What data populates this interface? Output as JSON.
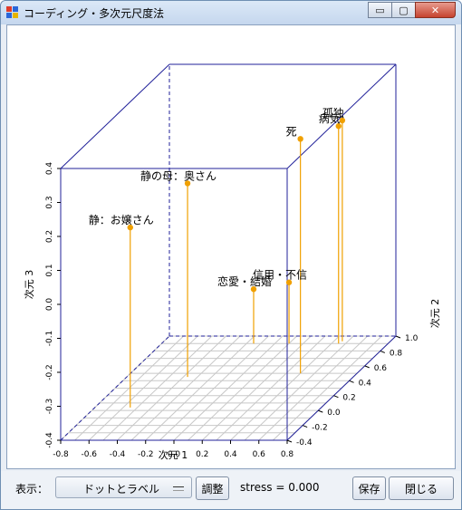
{
  "window": {
    "title": "コーディング・多次元尺度法",
    "buttons": {
      "minimize": "▭",
      "maximize": "▢",
      "close": "✕"
    }
  },
  "chart_data": {
    "type": "scatter",
    "projection": "3d",
    "axes": {
      "x": {
        "label": "次元 1",
        "range": [
          -0.8,
          0.8
        ],
        "ticks": [
          "-0.8",
          "-0.6",
          "-0.4",
          "-0.2",
          "0.0",
          "0.2",
          "0.4",
          "0.6",
          "0.8"
        ]
      },
      "y": {
        "label": "次元 2",
        "range": [
          -0.4,
          1.0
        ],
        "ticks": [
          "-0.4",
          "-0.2",
          "0.0",
          "0.2",
          "0.4",
          "0.6",
          "0.8",
          "1.0"
        ]
      },
      "z": {
        "label": "次元 3",
        "range": [
          -0.4,
          0.4
        ],
        "ticks": [
          "-0.4",
          "-0.3",
          "-0.2",
          "-0.1",
          "0.0",
          "0.1",
          "0.2",
          "0.3",
          "0.4"
        ]
      }
    },
    "points": [
      {
        "label": "静の母：奥さん",
        "x": -0.37,
        "y": 0.45,
        "z": 0.17
      },
      {
        "label": "静：お嬢さん",
        "x": -0.55,
        "y": 0.04,
        "z": 0.13
      },
      {
        "label": "死",
        "x": 0.4,
        "y": 0.5,
        "z": 0.29
      },
      {
        "label": "孤独",
        "x": 0.46,
        "y": 0.93,
        "z": 0.25
      },
      {
        "label": "病気",
        "x": 0.45,
        "y": 0.9,
        "z": 0.24
      },
      {
        "label": "恋愛・結婚",
        "x": -0.15,
        "y": 0.9,
        "z": -0.24
      },
      {
        "label": "信用・不信",
        "x": 0.1,
        "y": 0.9,
        "z": -0.22
      }
    ],
    "colors": {
      "box": "#22229a",
      "grid": "#c8c8c8",
      "point": "#f0a000",
      "stem": "#f0a000"
    }
  },
  "footer": {
    "display_label": "表示：",
    "display_value": "ドットとラベル",
    "adjust_button": "調整",
    "stress_text": "stress = 0.000",
    "save_button": "保存",
    "close_button": "閉じる"
  }
}
